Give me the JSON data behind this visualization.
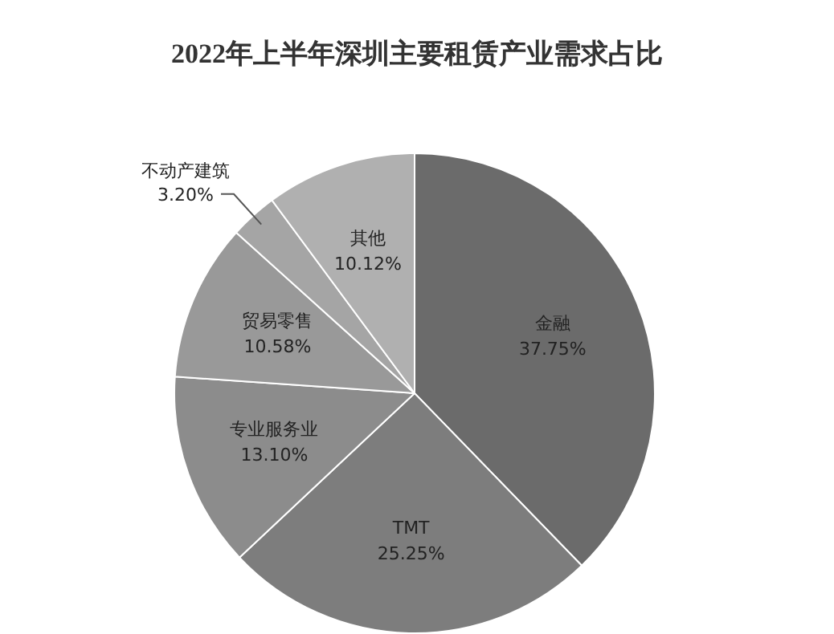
{
  "chart_data": {
    "type": "pie",
    "title": "2022年上半年深圳主要租赁产业需求占比",
    "categories": [
      "金融",
      "TMT",
      "专业服务业",
      "贸易零售",
      "不动产建筑",
      "其他"
    ],
    "values": [
      37.75,
      25.25,
      13.1,
      10.58,
      3.2,
      10.12
    ],
    "value_labels": [
      "37.75%",
      "25.25%",
      "13.10%",
      "10.58%",
      "3.20%",
      "10.12%"
    ],
    "colors": [
      "#6b6b6b",
      "#7d7d7d",
      "#8c8c8c",
      "#999999",
      "#a5a5a5",
      "#b0b0b0"
    ],
    "legend": false
  }
}
